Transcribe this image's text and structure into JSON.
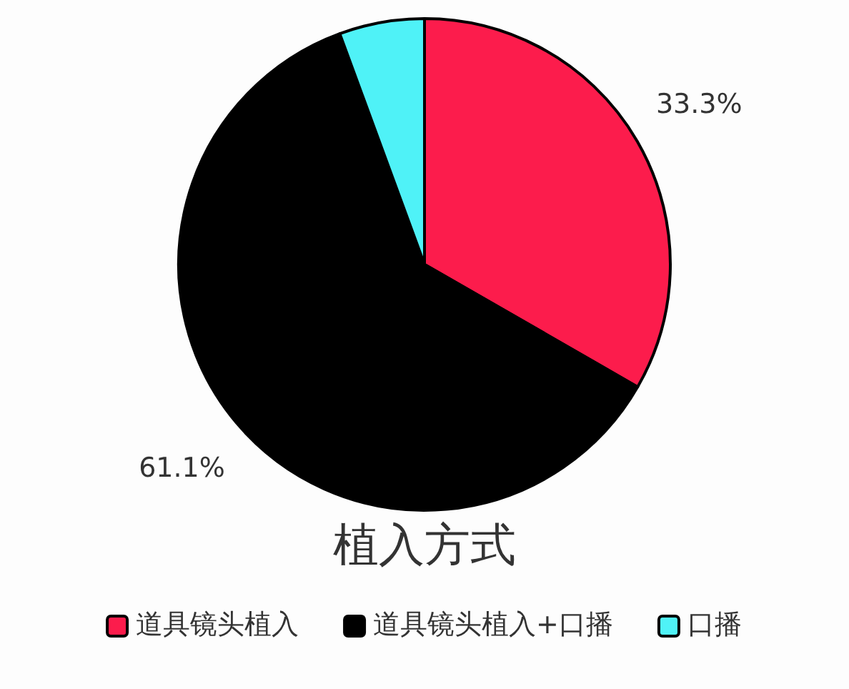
{
  "chart_data": {
    "type": "pie",
    "title": "植入方式",
    "categories": [
      "道具镜头植入",
      "道具镜头植入+口播",
      "口播"
    ],
    "values": [
      33.3,
      61.1,
      5.6
    ],
    "colors": [
      "#fc1c4c",
      "#000000",
      "#4ff2f7"
    ],
    "value_labels": [
      "33.3%",
      "61.1%",
      null
    ],
    "legend": "bottom"
  }
}
